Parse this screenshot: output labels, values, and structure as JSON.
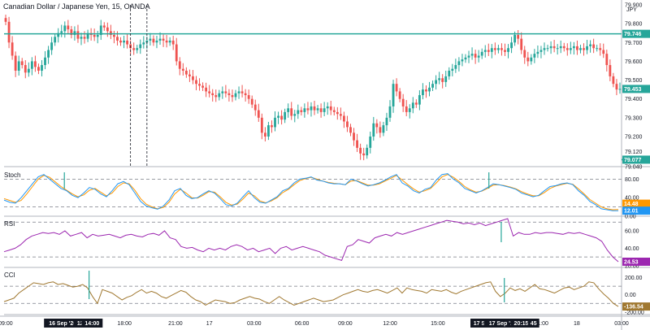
{
  "title": "Canadian Dollar / Japanese Yen, 15, OANDA",
  "currency": "JPY",
  "panels": {
    "stoch": "Stoch",
    "rsi": "RSI",
    "cci": "CCI"
  },
  "colors": {
    "up": "#26a69a",
    "down": "#ef5350",
    "level_line": "#26a69a",
    "stoch_k": "#2196f3",
    "stoch_d": "#ff9800",
    "rsi": "#9c27b0",
    "cci": "#a07830",
    "vline": "#131722",
    "axis_bg": "#131722"
  },
  "chart_data": [
    {
      "type": "candlestick",
      "title": "Canadian Dollar / Japanese Yen, 15, OANDA",
      "ylim": [
        79.04,
        79.9
      ],
      "y_ticks": [
        "79.900",
        "79.800",
        "79.700",
        "79.600",
        "79.500",
        "79.400",
        "79.300",
        "79.200",
        "79.120",
        "79.040"
      ],
      "x_ticks": [
        "09:00",
        "15:00",
        "18:00",
        "21:00",
        "17",
        "03:00",
        "06:00",
        "09:00",
        "12:00",
        "15:00",
        "21:00",
        "18",
        "03:00"
      ],
      "x_tick_pos": [
        1,
        48,
        78,
        111,
        133,
        162,
        193,
        221,
        250,
        281,
        348,
        371,
        400
      ],
      "time_highlights": [
        {
          "label": "16 Sep '20",
          "pos": 38
        },
        {
          "label": "12:45",
          "pos": 52
        },
        {
          "label": "14:00",
          "pos": 57
        },
        {
          "label": "17 Sep",
          "pos": 310
        },
        {
          "label": "17 Sep '20",
          "pos": 323
        },
        {
          "label": "20:15",
          "pos": 335
        },
        {
          "label": "45",
          "pos": 343
        }
      ],
      "horizontal_levels": [
        {
          "value": 79.746,
          "label": "79.746"
        },
        {
          "value": 79.077,
          "label": "79.077",
          "from": 210
        }
      ],
      "last_price": {
        "value": 79.453,
        "label": "79.453"
      },
      "vertical_markers": [
        38,
        43,
        313,
        317,
        321
      ],
      "closes": [
        79.81,
        79.7,
        79.63,
        79.55,
        79.6,
        79.58,
        79.54,
        79.56,
        79.6,
        79.57,
        79.55,
        79.58,
        79.62,
        79.66,
        79.7,
        79.73,
        79.75,
        79.76,
        79.79,
        79.77,
        79.74,
        79.76,
        79.72,
        79.73,
        79.72,
        79.75,
        79.74,
        79.73,
        79.74,
        79.79,
        79.78,
        79.76,
        79.74,
        79.73,
        79.71,
        79.7,
        79.71,
        79.69,
        79.67,
        79.66,
        79.67,
        79.69,
        79.7,
        79.71,
        79.72,
        79.7,
        79.71,
        79.72,
        79.71,
        79.7,
        79.71,
        79.69,
        79.6,
        79.56,
        79.55,
        79.53,
        79.52,
        79.5,
        79.48,
        79.47,
        79.46,
        79.44,
        79.43,
        79.42,
        79.41,
        79.43,
        79.44,
        79.43,
        79.42,
        79.41,
        79.43,
        79.44,
        79.43,
        79.42,
        79.4,
        79.37,
        79.34,
        79.3,
        79.22,
        79.2,
        79.26,
        79.25,
        79.3,
        79.31,
        79.29,
        79.33,
        79.35,
        79.31,
        79.32,
        79.34,
        79.33,
        79.35,
        79.34,
        79.36,
        79.34,
        79.35,
        79.33,
        79.35,
        79.36,
        79.34,
        79.33,
        79.32,
        79.31,
        79.28,
        79.25,
        79.22,
        79.18,
        79.14,
        79.11,
        79.1,
        79.14,
        79.2,
        79.27,
        79.25,
        79.22,
        79.26,
        79.3,
        79.36,
        79.48,
        79.44,
        79.4,
        79.36,
        79.33,
        79.35,
        79.38,
        79.37,
        79.42,
        79.45,
        79.44,
        79.46,
        79.48,
        79.5,
        79.51,
        79.49,
        79.52,
        79.55,
        79.56,
        79.58,
        79.6,
        79.61,
        79.62,
        79.63,
        79.64,
        79.62,
        79.63,
        79.65,
        79.66,
        79.65,
        79.67,
        79.66,
        79.67,
        79.66,
        79.65,
        79.67,
        79.7,
        79.74,
        79.72,
        79.66,
        79.62,
        79.6,
        79.62,
        79.64,
        79.65,
        79.66,
        79.67,
        79.67,
        79.68,
        79.67,
        79.67,
        79.68,
        79.67,
        79.66,
        79.67,
        79.68,
        79.66,
        79.67,
        79.66,
        79.68,
        79.69,
        79.67,
        79.67,
        79.66,
        79.64,
        79.58,
        79.52,
        79.48,
        79.45,
        79.453
      ]
    },
    {
      "type": "line",
      "title": "Stoch",
      "ylim": [
        0,
        100
      ],
      "y_ticks": [
        "80.00",
        "40.00",
        "0.00"
      ],
      "levels": [
        80,
        20
      ],
      "series": [
        {
          "name": "%K",
          "last": "12.01",
          "values": [
            35,
            30,
            28,
            40,
            55,
            70,
            85,
            90,
            80,
            70,
            60,
            55,
            45,
            40,
            50,
            62,
            58,
            48,
            42,
            55,
            70,
            75,
            68,
            50,
            32,
            22,
            18,
            15,
            22,
            35,
            55,
            60,
            45,
            38,
            40,
            48,
            55,
            50,
            38,
            25,
            22,
            28,
            42,
            55,
            40,
            30,
            28,
            35,
            42,
            55,
            60,
            72,
            80,
            82,
            85,
            78,
            76,
            72,
            70,
            70,
            68,
            80,
            76,
            70,
            65,
            68,
            72,
            78,
            85,
            90,
            72,
            65,
            55,
            50,
            58,
            62,
            78,
            90,
            92,
            80,
            72,
            60,
            55,
            50,
            55,
            62,
            70,
            68,
            65,
            62,
            58,
            50,
            46,
            42,
            45,
            55,
            64,
            66,
            70,
            72,
            68,
            55,
            45,
            32,
            25,
            16,
            14,
            12,
            12.01
          ]
        },
        {
          "name": "%D",
          "last": "14.48",
          "values": [
            38,
            34,
            30,
            34,
            48,
            64,
            80,
            88,
            84,
            74,
            64,
            56,
            48,
            42,
            46,
            56,
            60,
            52,
            44,
            50,
            64,
            72,
            70,
            56,
            38,
            26,
            20,
            16,
            19,
            30,
            48,
            58,
            50,
            40,
            39,
            45,
            53,
            52,
            42,
            30,
            24,
            26,
            37,
            50,
            44,
            33,
            29,
            33,
            40,
            51,
            58,
            68,
            77,
            81,
            84,
            80,
            76,
            73,
            71,
            70,
            68,
            76,
            77,
            72,
            67,
            67,
            70,
            76,
            82,
            88,
            78,
            68,
            59,
            52,
            55,
            60,
            72,
            85,
            90,
            84,
            75,
            64,
            57,
            52,
            54,
            60,
            67,
            68,
            66,
            63,
            59,
            53,
            48,
            44,
            44,
            51,
            60,
            65,
            68,
            71,
            69,
            59,
            48,
            36,
            28,
            20,
            16,
            14,
            14.48
          ]
        }
      ]
    },
    {
      "type": "line",
      "title": "RSI",
      "ylim": [
        18,
        74
      ],
      "y_ticks": [
        "60.00",
        "40.00",
        "20.00"
      ],
      "levels": [
        70,
        30
      ],
      "series": [
        {
          "name": "RSI",
          "last": "24.53",
          "values": [
            36,
            38,
            40,
            44,
            50,
            54,
            56,
            58,
            57,
            58,
            56,
            60,
            54,
            56,
            58,
            52,
            56,
            54,
            55,
            56,
            54,
            52,
            55,
            56,
            54,
            53,
            56,
            57,
            55,
            60,
            52,
            50,
            42,
            40,
            41,
            38,
            36,
            40,
            38,
            40,
            38,
            42,
            44,
            42,
            38,
            40,
            36,
            38,
            40,
            34,
            40,
            42,
            38,
            40,
            42,
            40,
            38,
            36,
            32,
            30,
            28,
            26,
            42,
            44,
            50,
            48,
            46,
            52,
            54,
            56,
            54,
            58,
            56,
            58,
            60,
            62,
            64,
            66,
            68,
            70,
            72,
            71,
            70,
            68,
            69,
            67,
            69,
            66,
            68,
            70,
            72,
            74,
            54,
            58,
            56,
            56,
            58,
            57,
            58,
            58,
            57,
            56,
            58,
            57,
            58,
            56,
            54,
            52,
            48,
            38,
            30,
            24.53
          ]
        }
      ]
    },
    {
      "type": "line",
      "title": "CCI",
      "ylim": [
        -230,
        290
      ],
      "y_ticks": [
        "200.00",
        "0.00",
        "-200.00"
      ],
      "levels": [
        100,
        -100
      ],
      "series": [
        {
          "name": "CCI",
          "last": "-136.54",
          "values": [
            -80,
            -60,
            -40,
            20,
            60,
            100,
            140,
            130,
            120,
            140,
            150,
            120,
            130,
            110,
            90,
            100,
            120,
            80,
            -20,
            -100,
            60,
            40,
            20,
            -20,
            -60,
            -30,
            -10,
            30,
            60,
            20,
            40,
            20,
            -20,
            -40,
            -10,
            20,
            50,
            30,
            -20,
            -60,
            -80,
            -120,
            -90,
            -60,
            -70,
            -80,
            -100,
            -90,
            -60,
            -40,
            -20,
            -40,
            -50,
            -80,
            -100,
            -60,
            -20,
            -60,
            -90,
            -120,
            -100,
            -80,
            -60,
            -40,
            -60,
            -80,
            -70,
            -60,
            -30,
            0,
            20,
            40,
            60,
            40,
            30,
            50,
            60,
            40,
            20,
            50,
            80,
            20,
            80,
            60,
            50,
            40,
            20,
            60,
            50,
            40,
            60,
            30,
            10,
            40,
            60,
            80,
            100,
            120,
            140,
            150,
            40,
            -20,
            20,
            80,
            50,
            70,
            40,
            80,
            120,
            70,
            60,
            40,
            20,
            50,
            80,
            90,
            60,
            80,
            100,
            150,
            140,
            70,
            10,
            -40,
            -100,
            -136.54
          ]
        }
      ]
    }
  ]
}
